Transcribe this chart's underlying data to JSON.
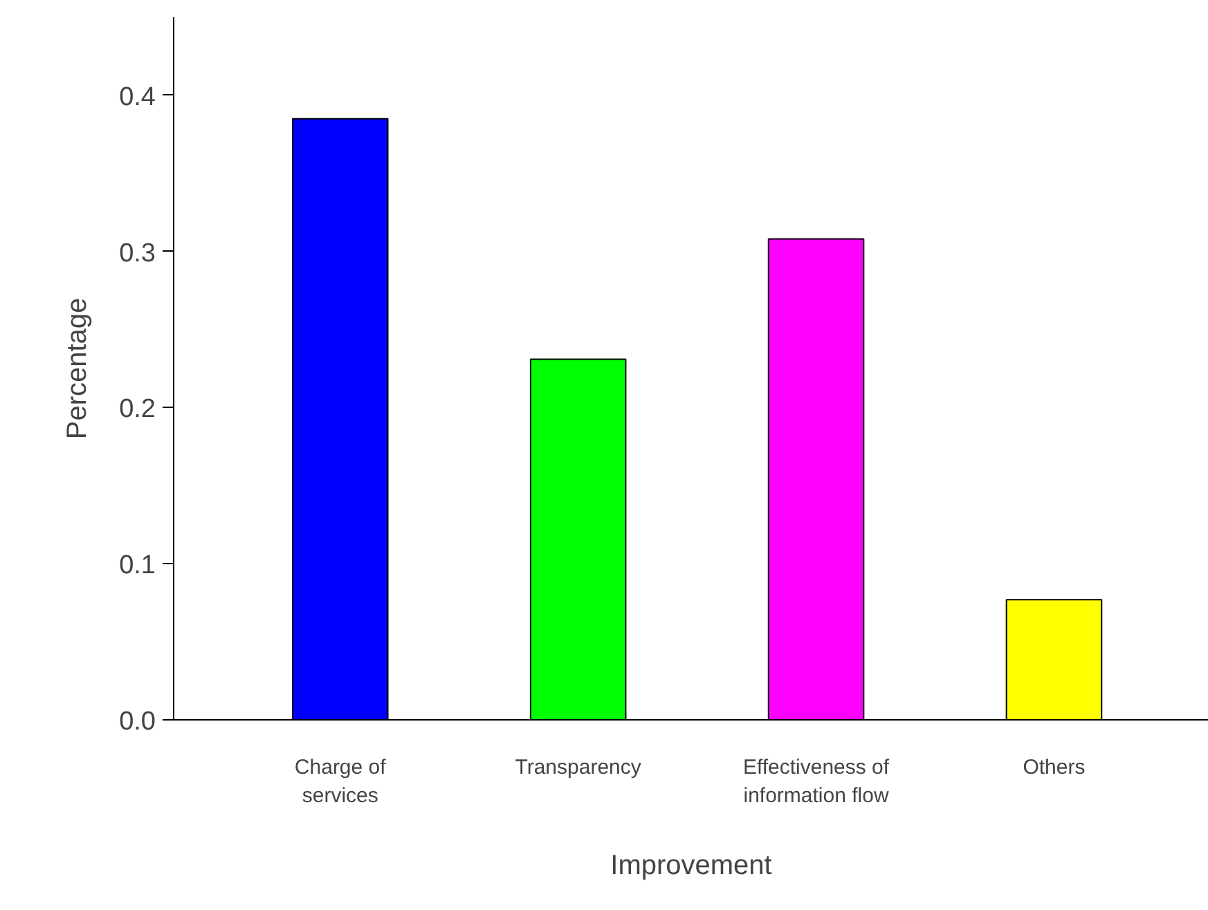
{
  "chart_data": {
    "type": "bar",
    "xlabel": "Improvement",
    "ylabel": "Percentage",
    "categories": [
      "Charge of\nservices",
      "Transparency",
      "Effectiveness of\ninformation flow",
      "Others"
    ],
    "values": [
      0.385,
      0.231,
      0.308,
      0.077
    ],
    "colors": [
      "#0000ff",
      "#00ff00",
      "#ff00ff",
      "#ffff00"
    ],
    "ylim": [
      0,
      0.45
    ],
    "yticks": [
      {
        "value": 0,
        "label": "0.0"
      },
      0.1,
      0.2,
      0.3,
      0.4
    ],
    "grid": false
  }
}
